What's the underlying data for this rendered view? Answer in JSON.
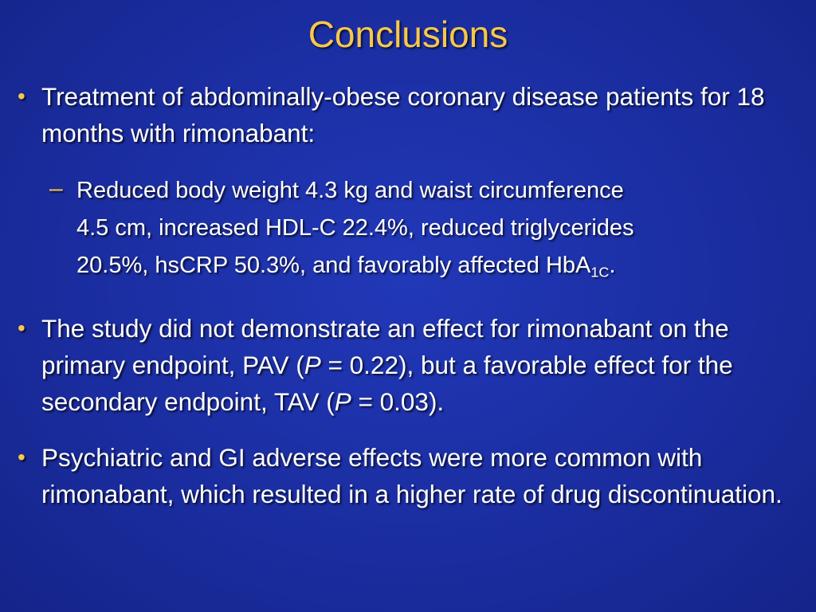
{
  "slide": {
    "title": "Conclusions",
    "bullets": [
      {
        "text": "Treatment of abdominally-obese coronary disease patients for 18 months with rimonabant:",
        "sub": {
          "line1": "Reduced body weight 4.3 kg and waist circumference",
          "line2": "4.5 cm, increased HDL-C 22.4%, reduced triglycerides",
          "line3_prefix": "20.5%, hsCRP 50.3%, and favorably affected HbA",
          "line3_subscript": "1C",
          "line3_suffix": "."
        }
      },
      {
        "parts": {
          "a": "The study did not demonstrate an effect for rimonabant on the primary endpoint, PAV (",
          "p1": "P",
          "b": " = 0.22), but a favorable effect for the secondary endpoint, TAV (",
          "p2": "P",
          "c": " = 0.03)."
        }
      },
      {
        "text": "Psychiatric and GI adverse effects were more common with rimonabant, which resulted in a higher rate of drug discontinuation."
      }
    ],
    "bullet_symbol": "•",
    "sub_symbol": "–"
  }
}
